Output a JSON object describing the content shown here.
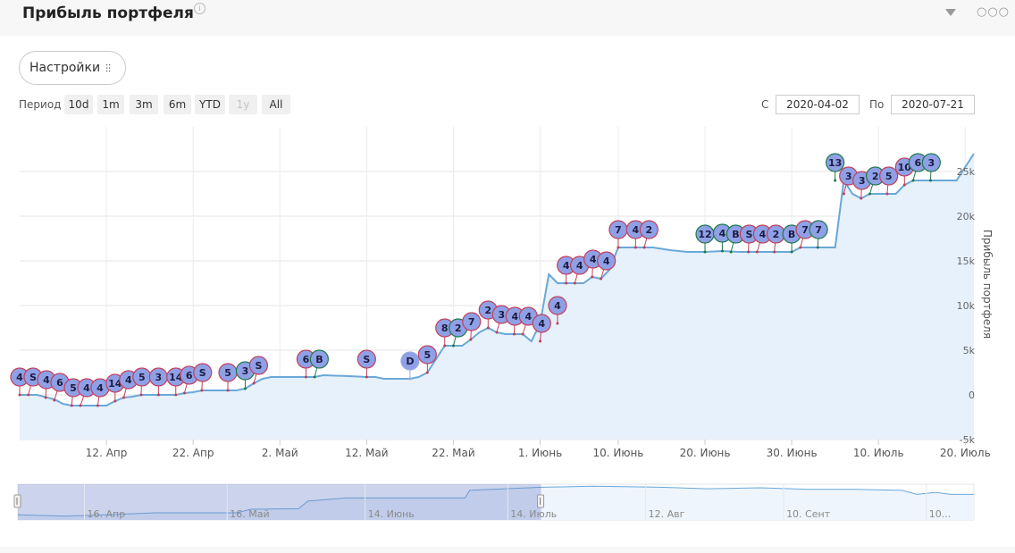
{
  "widget": {
    "title": "Прибыль портфеля",
    "info_icon": "info-icon",
    "collapse_icon": "triangle-down-icon",
    "more_icon": "ellipsis-icon"
  },
  "toolbar": {
    "settings_label": "Настройки",
    "settings_icon": "sliders-icon",
    "period_label": "Период",
    "ranges": [
      {
        "label": "10d",
        "enabled": true
      },
      {
        "label": "1m",
        "enabled": true
      },
      {
        "label": "3m",
        "enabled": true
      },
      {
        "label": "6m",
        "enabled": true
      },
      {
        "label": "YTD",
        "enabled": true
      },
      {
        "label": "1y",
        "enabled": false
      },
      {
        "label": "All",
        "enabled": true
      }
    ],
    "from_label": "С",
    "from_value": "2020-04-02",
    "to_label": "По",
    "to_value": "2020-07-21"
  },
  "chart_data": {
    "type": "area",
    "ylabel": "Прибыль портфеля",
    "x_range": [
      "2020-04-02",
      "2020-07-21"
    ],
    "ylim": [
      -5000,
      30000
    ],
    "y_ticks": [
      -5000,
      0,
      5000,
      10000,
      15000,
      20000,
      25000
    ],
    "y_tick_labels": [
      "-5k",
      "0",
      "5k",
      "10k",
      "15k",
      "20k",
      "25k"
    ],
    "x_ticks": [
      {
        "date": "2020-04-12",
        "label": "12. Апр"
      },
      {
        "date": "2020-04-22",
        "label": "22. Апр"
      },
      {
        "date": "2020-05-02",
        "label": "2. Май"
      },
      {
        "date": "2020-05-12",
        "label": "12. Май"
      },
      {
        "date": "2020-05-22",
        "label": "22. Май"
      },
      {
        "date": "2020-06-01",
        "label": "1. Июнь"
      },
      {
        "date": "2020-06-10",
        "label": "10. Июнь"
      },
      {
        "date": "2020-06-20",
        "label": "20. Июнь"
      },
      {
        "date": "2020-06-30",
        "label": "30. Июнь"
      },
      {
        "date": "2020-07-10",
        "label": "10. Июль"
      },
      {
        "date": "2020-07-20",
        "label": "20. Июль"
      }
    ],
    "grid": true,
    "series": [
      {
        "color": "#6aa8d8",
        "fill": "#e6f1fb",
        "points": [
          [
            "2020-04-02",
            0
          ],
          [
            "2020-04-04",
            0
          ],
          [
            "2020-04-06",
            -500
          ],
          [
            "2020-04-07",
            -1000
          ],
          [
            "2020-04-08",
            -1200
          ],
          [
            "2020-04-09",
            -1200
          ],
          [
            "2020-04-10",
            -1200
          ],
          [
            "2020-04-12",
            -1200
          ],
          [
            "2020-04-13",
            -700
          ],
          [
            "2020-04-14",
            -300
          ],
          [
            "2020-04-15",
            -200
          ],
          [
            "2020-04-16",
            0
          ],
          [
            "2020-04-17",
            0
          ],
          [
            "2020-04-18",
            0
          ],
          [
            "2020-04-20",
            0
          ],
          [
            "2020-04-21",
            200
          ],
          [
            "2020-04-22",
            300
          ],
          [
            "2020-04-23",
            500
          ],
          [
            "2020-04-24",
            500
          ],
          [
            "2020-04-26",
            500
          ],
          [
            "2020-04-27",
            500
          ],
          [
            "2020-04-28",
            700
          ],
          [
            "2020-04-29",
            1300
          ],
          [
            "2020-04-30",
            1800
          ],
          [
            "2020-05-01",
            2000
          ],
          [
            "2020-05-03",
            2000
          ],
          [
            "2020-05-05",
            2000
          ],
          [
            "2020-05-06",
            2000
          ],
          [
            "2020-05-07",
            2200
          ],
          [
            "2020-05-10",
            2100
          ],
          [
            "2020-05-12",
            2000
          ],
          [
            "2020-05-13",
            2000
          ],
          [
            "2020-05-14",
            1800
          ],
          [
            "2020-05-16",
            1800
          ],
          [
            "2020-05-17",
            1800
          ],
          [
            "2020-05-18",
            2000
          ],
          [
            "2020-05-19",
            2500
          ],
          [
            "2020-05-20",
            4000
          ],
          [
            "2020-05-21",
            5500
          ],
          [
            "2020-05-22",
            5500
          ],
          [
            "2020-05-23",
            5500
          ],
          [
            "2020-05-24",
            6200
          ],
          [
            "2020-05-25",
            7000
          ],
          [
            "2020-05-26",
            7500
          ],
          [
            "2020-05-27",
            7000
          ],
          [
            "2020-05-28",
            6800
          ],
          [
            "2020-05-29",
            6800
          ],
          [
            "2020-05-30",
            6800
          ],
          [
            "2020-05-31",
            6000
          ],
          [
            "2020-06-01",
            8000
          ],
          [
            "2020-06-02",
            13500
          ],
          [
            "2020-06-03",
            12500
          ],
          [
            "2020-06-04",
            12500
          ],
          [
            "2020-06-05",
            12500
          ],
          [
            "2020-06-06",
            12500
          ],
          [
            "2020-06-07",
            13200
          ],
          [
            "2020-06-08",
            13000
          ],
          [
            "2020-06-09",
            14000
          ],
          [
            "2020-06-10",
            16500
          ],
          [
            "2020-06-12",
            16500
          ],
          [
            "2020-06-14",
            16500
          ],
          [
            "2020-06-16",
            16200
          ],
          [
            "2020-06-18",
            16000
          ],
          [
            "2020-06-20",
            16000
          ],
          [
            "2020-06-22",
            16100
          ],
          [
            "2020-06-24",
            16000
          ],
          [
            "2020-06-26",
            16000
          ],
          [
            "2020-06-28",
            16000
          ],
          [
            "2020-06-30",
            16000
          ],
          [
            "2020-07-01",
            16500
          ],
          [
            "2020-07-02",
            16500
          ],
          [
            "2020-07-03",
            16500
          ],
          [
            "2020-07-04",
            16500
          ],
          [
            "2020-07-05",
            16500
          ],
          [
            "2020-07-06",
            24000
          ],
          [
            "2020-07-07",
            22500
          ],
          [
            "2020-07-08",
            22000
          ],
          [
            "2020-07-09",
            22500
          ],
          [
            "2020-07-10",
            22500
          ],
          [
            "2020-07-12",
            22500
          ],
          [
            "2020-07-13",
            23500
          ],
          [
            "2020-07-14",
            24000
          ],
          [
            "2020-07-16",
            24000
          ],
          [
            "2020-07-18",
            24000
          ],
          [
            "2020-07-19",
            24000
          ],
          [
            "2020-07-20",
            25500
          ],
          [
            "2020-07-21",
            27000
          ]
        ]
      }
    ],
    "flags": [
      {
        "date": "2020-04-02",
        "value": 0,
        "label": "4",
        "color": "#c23f5b"
      },
      {
        "date": "2020-04-03",
        "value": 0,
        "label": "S",
        "color": "#c23f5b"
      },
      {
        "date": "2020-04-05",
        "value": -300,
        "label": "4",
        "color": "#c23f5b"
      },
      {
        "date": "2020-04-06",
        "value": -600,
        "label": "6",
        "color": "#c23f5b"
      },
      {
        "date": "2020-04-08",
        "value": -1200,
        "label": "5",
        "color": "#c23f5b"
      },
      {
        "date": "2020-04-09",
        "value": -1200,
        "label": "4",
        "color": "#c23f5b"
      },
      {
        "date": "2020-04-11",
        "value": -1200,
        "label": "4",
        "color": "#c23f5b"
      },
      {
        "date": "2020-04-13",
        "value": -700,
        "label": "14",
        "color": "#c23f5b"
      },
      {
        "date": "2020-04-14",
        "value": -300,
        "label": "4",
        "color": "#c23f5b"
      },
      {
        "date": "2020-04-16",
        "value": 0,
        "label": "5",
        "color": "#c23f5b"
      },
      {
        "date": "2020-04-18",
        "value": 0,
        "label": "3",
        "color": "#c23f5b"
      },
      {
        "date": "2020-04-20",
        "value": 0,
        "label": "14",
        "color": "#c23f5b"
      },
      {
        "date": "2020-04-21",
        "value": 200,
        "label": "6",
        "color": "#c23f5b"
      },
      {
        "date": "2020-04-23",
        "value": 500,
        "label": "S",
        "color": "#c23f5b"
      },
      {
        "date": "2020-04-26",
        "value": 500,
        "label": "5",
        "color": "#c23f5b"
      },
      {
        "date": "2020-04-28",
        "value": 700,
        "label": "3",
        "color": "#1f7a4d"
      },
      {
        "date": "2020-04-29",
        "value": 1300,
        "label": "S",
        "color": "#c23f5b"
      },
      {
        "date": "2020-05-05",
        "value": 2000,
        "label": "6",
        "color": "#c23f5b"
      },
      {
        "date": "2020-05-06",
        "value": 2000,
        "label": "B",
        "color": "#1f7a4d"
      },
      {
        "date": "2020-05-12",
        "value": 2000,
        "label": "S",
        "color": "#c23f5b"
      },
      {
        "date": "2020-05-17",
        "value": 1800,
        "label": "D",
        "color": "#9aa8e8"
      },
      {
        "date": "2020-05-19",
        "value": 2500,
        "label": "5",
        "color": "#c23f5b"
      },
      {
        "date": "2020-05-21",
        "value": 5500,
        "label": "8",
        "color": "#c23f5b"
      },
      {
        "date": "2020-05-22",
        "value": 5500,
        "label": "2",
        "color": "#1f7a4d"
      },
      {
        "date": "2020-05-24",
        "value": 6200,
        "label": "7",
        "color": "#c23f5b"
      },
      {
        "date": "2020-05-26",
        "value": 7500,
        "label": "2",
        "color": "#c23f5b"
      },
      {
        "date": "2020-05-27",
        "value": 7000,
        "label": "3",
        "color": "#c23f5b"
      },
      {
        "date": "2020-05-29",
        "value": 6800,
        "label": "4",
        "color": "#c23f5b"
      },
      {
        "date": "2020-05-30",
        "value": 6800,
        "label": "4",
        "color": "#c23f5b"
      },
      {
        "date": "2020-06-01",
        "value": 6000,
        "label": "4",
        "color": "#c23f5b"
      },
      {
        "date": "2020-06-03",
        "value": 8000,
        "label": "4",
        "color": "#c23f5b"
      },
      {
        "date": "2020-06-04",
        "value": 12500,
        "label": "4",
        "color": "#c23f5b"
      },
      {
        "date": "2020-06-05",
        "value": 12500,
        "label": "4",
        "color": "#c23f5b"
      },
      {
        "date": "2020-06-07",
        "value": 13200,
        "label": "4",
        "color": "#c23f5b"
      },
      {
        "date": "2020-06-08",
        "value": 13000,
        "label": "4",
        "color": "#c23f5b"
      },
      {
        "date": "2020-06-10",
        "value": 16500,
        "label": "7",
        "color": "#c23f5b"
      },
      {
        "date": "2020-06-12",
        "value": 16500,
        "label": "4",
        "color": "#c23f5b"
      },
      {
        "date": "2020-06-13",
        "value": 16500,
        "label": "2",
        "color": "#c23f5b"
      },
      {
        "date": "2020-06-20",
        "value": 16000,
        "label": "12",
        "color": "#1f7a4d"
      },
      {
        "date": "2020-06-22",
        "value": 16100,
        "label": "4",
        "color": "#1f7a4d"
      },
      {
        "date": "2020-06-23",
        "value": 16000,
        "label": "B",
        "color": "#1f7a4d"
      },
      {
        "date": "2020-06-25",
        "value": 16000,
        "label": "S",
        "color": "#c23f5b"
      },
      {
        "date": "2020-06-26",
        "value": 16000,
        "label": "4",
        "color": "#c23f5b"
      },
      {
        "date": "2020-06-28",
        "value": 16000,
        "label": "2",
        "color": "#c23f5b"
      },
      {
        "date": "2020-06-30",
        "value": 16000,
        "label": "B",
        "color": "#1f7a4d"
      },
      {
        "date": "2020-07-01",
        "value": 16500,
        "label": "7",
        "color": "#c23f5b"
      },
      {
        "date": "2020-07-03",
        "value": 16500,
        "label": "7",
        "color": "#1f7a4d"
      },
      {
        "date": "2020-07-05",
        "value": 24000,
        "label": "13",
        "color": "#1f7a4d"
      },
      {
        "date": "2020-07-06",
        "value": 22500,
        "label": "3",
        "color": "#c23f5b"
      },
      {
        "date": "2020-07-08",
        "value": 22000,
        "label": "3",
        "color": "#c23f5b"
      },
      {
        "date": "2020-07-09",
        "value": 22500,
        "label": "2",
        "color": "#1f7a4d"
      },
      {
        "date": "2020-07-11",
        "value": 22500,
        "label": "5",
        "color": "#c23f5b"
      },
      {
        "date": "2020-07-13",
        "value": 23500,
        "label": "10",
        "color": "#c23f5b"
      },
      {
        "date": "2020-07-14",
        "value": 24000,
        "label": "6",
        "color": "#1f7a4d"
      },
      {
        "date": "2020-07-16",
        "value": 24000,
        "label": "3",
        "color": "#1f7a4d"
      }
    ]
  },
  "navigator": {
    "x_range": [
      "2020-04-02",
      "2020-10-20"
    ],
    "selected": [
      "2020-04-02",
      "2020-07-21"
    ],
    "labels": [
      {
        "date": "2020-04-16",
        "label": "16. Апр"
      },
      {
        "date": "2020-05-16",
        "label": "16. Май"
      },
      {
        "date": "2020-06-14",
        "label": "14. Июнь"
      },
      {
        "date": "2020-07-14",
        "label": "14. Июль"
      },
      {
        "date": "2020-08-12",
        "label": "12. Авг"
      },
      {
        "date": "2020-09-10",
        "label": "10. Сент"
      },
      {
        "date": "2020-10-10",
        "label": "10..."
      }
    ],
    "series": [
      [
        "2020-04-02",
        0
      ],
      [
        "2020-04-12",
        -1200
      ],
      [
        "2020-04-22",
        300
      ],
      [
        "2020-05-01",
        2000
      ],
      [
        "2020-05-18",
        2000
      ],
      [
        "2020-05-21",
        5500
      ],
      [
        "2020-05-31",
        6000
      ],
      [
        "2020-06-02",
        13500
      ],
      [
        "2020-06-10",
        16500
      ],
      [
        "2020-07-05",
        16500
      ],
      [
        "2020-07-06",
        24000
      ],
      [
        "2020-07-21",
        27000
      ],
      [
        "2020-08-01",
        28000
      ],
      [
        "2020-08-15",
        27000
      ],
      [
        "2020-08-25",
        25500
      ],
      [
        "2020-09-05",
        26500
      ],
      [
        "2020-09-15",
        25000
      ],
      [
        "2020-09-25",
        25000
      ],
      [
        "2020-10-05",
        24000
      ],
      [
        "2020-10-08",
        20000
      ],
      [
        "2020-10-12",
        22000
      ],
      [
        "2020-10-15",
        20000
      ],
      [
        "2020-10-20",
        20000
      ]
    ],
    "ylim": [
      -5000,
      30000
    ]
  }
}
